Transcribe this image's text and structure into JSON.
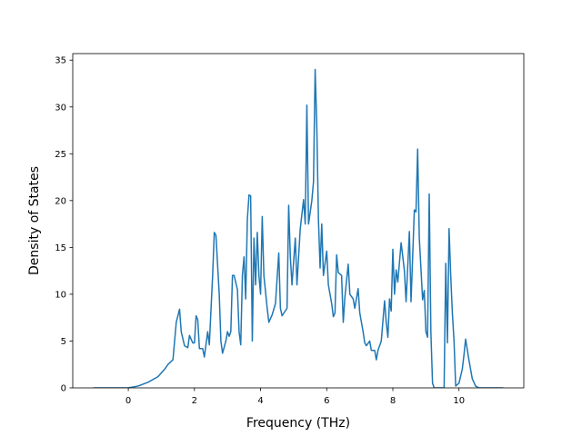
{
  "chart_data": {
    "type": "line",
    "x_label": "Frequency (THz)",
    "y_label": "Density of States",
    "color": "#1f77b4",
    "x": [
      -1.06,
      0,
      0.3,
      0.6,
      0.9,
      1.1,
      1.2,
      1.35,
      1.45,
      1.55,
      1.6,
      1.7,
      1.8,
      1.85,
      1.95,
      2.0,
      2.05,
      2.1,
      2.15,
      2.25,
      2.3,
      2.4,
      2.45,
      2.55,
      2.6,
      2.65,
      2.75,
      2.8,
      2.85,
      2.95,
      3.0,
      3.05,
      3.1,
      3.15,
      3.2,
      3.3,
      3.35,
      3.4,
      3.45,
      3.5,
      3.55,
      3.6,
      3.65,
      3.7,
      3.75,
      3.8,
      3.85,
      3.9,
      3.95,
      4.0,
      4.05,
      4.1,
      4.2,
      4.25,
      4.35,
      4.45,
      4.55,
      4.6,
      4.65,
      4.8,
      4.85,
      4.9,
      4.95,
      5.05,
      5.1,
      5.2,
      5.3,
      5.35,
      5.4,
      5.45,
      5.55,
      5.6,
      5.65,
      5.7,
      5.75,
      5.8,
      5.85,
      5.9,
      6.0,
      6.05,
      6.15,
      6.2,
      6.25,
      6.3,
      6.35,
      6.45,
      6.5,
      6.55,
      6.65,
      6.7,
      6.8,
      6.85,
      6.95,
      7.0,
      7.1,
      7.15,
      7.2,
      7.3,
      7.35,
      7.45,
      7.5,
      7.55,
      7.65,
      7.75,
      7.8,
      7.85,
      7.9,
      7.95,
      8.0,
      8.05,
      8.1,
      8.15,
      8.25,
      8.35,
      8.4,
      8.5,
      8.55,
      8.65,
      8.7,
      8.75,
      8.8,
      8.9,
      8.95,
      9.0,
      9.05,
      9.1,
      9.15,
      9.2,
      9.25,
      9.55,
      9.6,
      9.65,
      9.7,
      9.75,
      9.8,
      9.85,
      9.9,
      10.0,
      10.1,
      10.15,
      10.2,
      10.3,
      10.4,
      10.5,
      10.6,
      11.34
    ],
    "values": [
      0,
      0,
      0.2,
      0.6,
      1.2,
      2,
      2.5,
      3,
      7,
      8.4,
      6,
      4.5,
      4.3,
      5.6,
      4.8,
      4.8,
      7.7,
      7.3,
      4.2,
      4.2,
      3.3,
      6,
      4.6,
      12,
      16.6,
      16.3,
      10,
      5,
      3.7,
      5,
      6,
      5.5,
      6,
      12,
      12,
      10.5,
      6,
      4.6,
      12,
      14,
      9.5,
      18,
      20.6,
      20.5,
      5,
      16,
      11,
      16.6,
      12,
      10,
      18.3,
      12,
      8.5,
      7,
      7.8,
      9,
      14.4,
      8.5,
      7.7,
      8.5,
      19.5,
      14,
      11,
      16,
      11,
      17,
      20.1,
      17.5,
      30.2,
      17.5,
      20,
      22,
      34,
      28,
      18,
      12.8,
      17.5,
      12,
      14.6,
      11,
      9,
      7.6,
      8,
      14.2,
      12.3,
      12,
      7,
      9.7,
      13.2,
      10,
      9.5,
      8.5,
      10.6,
      8,
      6,
      4.8,
      4.5,
      5,
      4,
      4,
      3,
      4,
      5,
      9.3,
      7,
      5.4,
      9.5,
      8.2,
      14.8,
      10,
      12.6,
      11.3,
      15.5,
      12.5,
      9.2,
      16.7,
      9.2,
      19,
      18.8,
      25.5,
      16,
      9.4,
      10.4,
      6,
      5.4,
      20.7,
      6,
      0.5,
      0,
      0,
      13.3,
      4.8,
      17,
      12,
      8,
      5,
      0.2,
      0.5,
      2,
      3.5,
      5.2,
      3,
      1,
      0.2,
      0,
      0
    ],
    "xlim": [
      -1.68,
      11.96
    ],
    "xticks": [
      0,
      2,
      4,
      6,
      8,
      10
    ],
    "ylim": [
      0,
      35.7
    ],
    "yticks": [
      0,
      5,
      10,
      15,
      20,
      25,
      30,
      35
    ]
  }
}
